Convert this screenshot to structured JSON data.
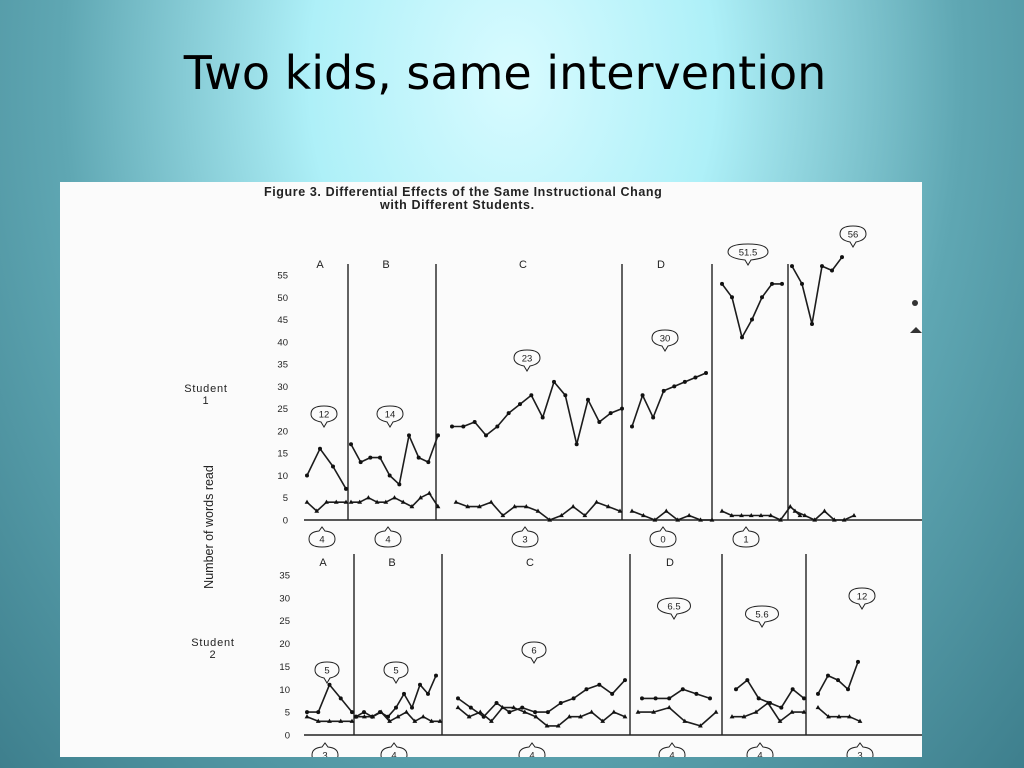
{
  "slide": {
    "title": "Two kids, same intervention"
  },
  "chart_data": {
    "type": "line",
    "caption_line1": "Figure 3.   Differential Effects of the Same Instructional Chang",
    "caption_line2": "with Different Students.",
    "ylabel": "Number of words read",
    "phases": [
      "A",
      "B",
      "C",
      "D",
      "",
      ""
    ],
    "panels": [
      {
        "label_line1": "Student",
        "label_line2": "1",
        "ylim": [
          0,
          55
        ],
        "yticks": [
          "0",
          "5",
          "10",
          "15",
          "20",
          "25",
          "30",
          "35",
          "40",
          "45",
          "50",
          "55"
        ],
        "top_labels": [
          "12",
          "14",
          "23",
          "30",
          "51.5",
          "56"
        ],
        "bottom_labels": [
          "4",
          "4",
          "3",
          "0",
          "1",
          ""
        ],
        "series": [
          {
            "marker": "circle",
            "values": [
              [
                10,
                16,
                12,
                7
              ],
              [
                17,
                13,
                14,
                14,
                10,
                8,
                19,
                14,
                13,
                19
              ],
              [
                21,
                21,
                22,
                19,
                21,
                24,
                26,
                28,
                23,
                31,
                28,
                17,
                27,
                22,
                24,
                25
              ],
              [
                21,
                28,
                23,
                29,
                30,
                31,
                32,
                33
              ],
              [
                53,
                50,
                41,
                45,
                50,
                53,
                53
              ],
              [
                57,
                53,
                44,
                57,
                56,
                59
              ]
            ]
          },
          {
            "marker": "triangle",
            "values": [
              [
                4,
                2,
                4,
                4,
                4
              ],
              [
                4,
                4,
                5,
                4,
                4,
                5,
                4,
                3,
                5,
                6,
                3
              ],
              [
                4,
                3,
                3,
                4,
                1,
                3,
                3,
                2,
                0,
                1,
                3,
                1,
                4,
                3,
                2
              ],
              [
                2,
                1,
                0,
                2,
                0,
                1,
                0,
                0
              ],
              [
                2,
                1,
                1,
                1,
                1,
                1,
                0,
                3,
                1
              ],
              [
                2,
                1,
                0,
                2,
                0,
                0,
                1
              ]
            ]
          }
        ]
      },
      {
        "label_line1": "Student",
        "label_line2": "2",
        "ylim": [
          0,
          35
        ],
        "yticks": [
          "0",
          "5",
          "10",
          "15",
          "20",
          "25",
          "30",
          "35"
        ],
        "top_labels": [
          "5",
          "5",
          "6",
          "6.5",
          "5.6",
          "12"
        ],
        "bottom_labels": [
          "3",
          "4",
          "4",
          "4",
          "4",
          "3"
        ],
        "series": [
          {
            "marker": "circle",
            "values": [
              [
                5,
                5,
                11,
                8,
                5
              ],
              [
                4,
                5,
                4,
                5,
                4,
                6,
                9,
                6,
                11,
                9,
                13
              ],
              [
                8,
                6,
                4,
                7,
                5,
                6,
                5,
                5,
                7,
                8,
                10,
                11,
                9,
                12
              ],
              [
                8,
                8,
                8,
                10,
                9,
                8
              ],
              [
                10,
                12,
                8,
                7,
                6,
                10,
                8
              ],
              [
                9,
                13,
                12,
                10,
                16
              ]
            ]
          },
          {
            "marker": "triangle",
            "values": [
              [
                4,
                3,
                3,
                3,
                3
              ],
              [
                4,
                4,
                4,
                5,
                3,
                4,
                5,
                3,
                4,
                3,
                3
              ],
              [
                6,
                4,
                5,
                3,
                6,
                6,
                5,
                4,
                2,
                2,
                4,
                4,
                5,
                3,
                5,
                4
              ],
              [
                5,
                5,
                6,
                3,
                2,
                5
              ],
              [
                4,
                4,
                5,
                7,
                3,
                5,
                5
              ],
              [
                6,
                4,
                4,
                4,
                3
              ]
            ]
          }
        ]
      }
    ]
  }
}
